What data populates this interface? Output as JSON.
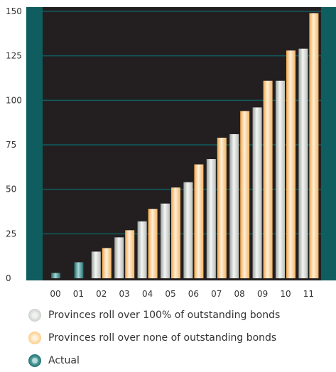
{
  "chart_data": {
    "type": "bar",
    "categories": [
      "00",
      "01",
      "02",
      "03",
      "04",
      "05",
      "06",
      "07",
      "08",
      "09",
      "10",
      "11"
    ],
    "series": [
      {
        "name": "Provinces roll over 100% of outstanding bonds",
        "values": [
          null,
          null,
          15,
          23,
          32,
          42,
          54,
          67,
          81,
          96,
          111,
          129
        ]
      },
      {
        "name": "Provinces roll over none of outstanding bonds",
        "values": [
          null,
          null,
          17,
          27,
          39,
          51,
          64,
          79,
          94,
          111,
          128,
          149
        ]
      },
      {
        "name": "Actual",
        "values": [
          3,
          9,
          null,
          null,
          null,
          null,
          null,
          null,
          null,
          null,
          null,
          null
        ]
      }
    ],
    "yticks": [
      0,
      25,
      50,
      75,
      100,
      125,
      150
    ],
    "ylim": [
      0,
      150
    ],
    "grid": true,
    "legend": "bottom",
    "colors": {
      "plot_background": "#231f20",
      "frame": "#0f5d5f",
      "gridline": "#0f5d5f",
      "series_grey": "#d5d9d5",
      "series_orange": "#f7c07a",
      "series_teal": "#2f7f80"
    }
  }
}
